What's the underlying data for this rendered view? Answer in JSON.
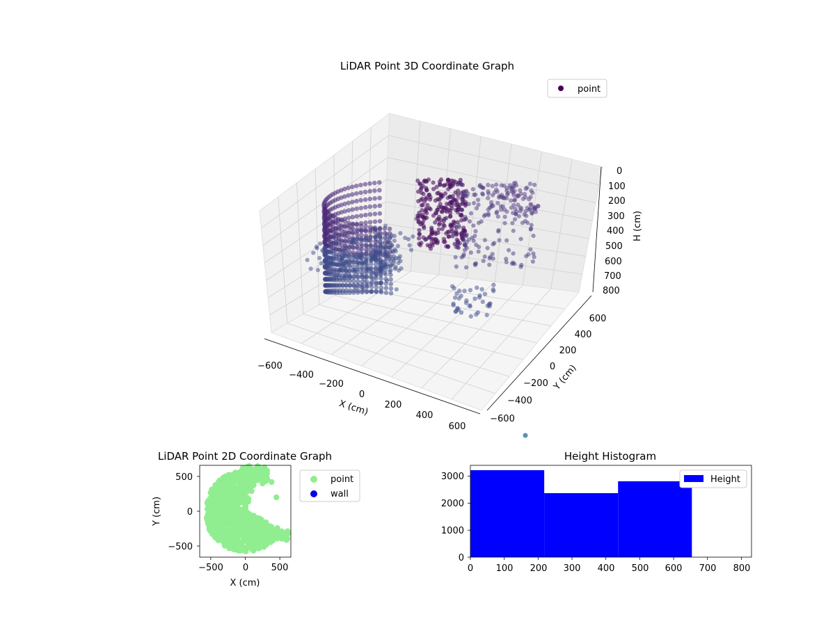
{
  "chart_data": [
    {
      "type": "scatter",
      "title": "LiDAR Point 3D Coordinate Graph",
      "xlabel": "X (cm)",
      "ylabel": "Y (cm)",
      "zlabel": "H (cm)",
      "x_ticks": [
        "−600",
        "−400",
        "−200",
        "0",
        "200",
        "400",
        "600"
      ],
      "y_ticks": [
        "−600",
        "−400",
        "−200",
        "0",
        "200",
        "400",
        "600"
      ],
      "z_ticks": [
        "0",
        "100",
        "200",
        "300",
        "400",
        "500",
        "600",
        "700",
        "800"
      ],
      "xlim": [
        -660,
        660
      ],
      "ylim": [
        -660,
        660
      ],
      "zlim": [
        0,
        830
      ],
      "z_inverted": true,
      "grid": true,
      "legend": {
        "placement": "top-right",
        "entries": [
          {
            "label": "point",
            "color": "#440154"
          }
        ]
      },
      "series": [
        {
          "name": "point",
          "values": [
            {
              "x": -600,
              "y": -300,
              "z": 500
            },
            {
              "x": -600,
              "y": 0,
              "z": 500
            },
            {
              "x": -560,
              "y": 250,
              "z": 500
            },
            {
              "x": -450,
              "y": 430,
              "z": 500
            },
            {
              "x": -300,
              "y": 560,
              "z": 500
            },
            {
              "x": -100,
              "y": 620,
              "z": 500
            },
            {
              "x": 100,
              "y": 600,
              "z": 500
            },
            {
              "x": -450,
              "y": -480,
              "z": 500
            },
            {
              "x": -250,
              "y": -580,
              "z": 500
            },
            {
              "x": 0,
              "y": -600,
              "z": 500
            },
            {
              "x": 250,
              "y": -520,
              "z": 500
            },
            {
              "x": 150,
              "y": 580,
              "z": 200
            },
            {
              "x": 260,
              "y": 520,
              "z": 250
            },
            {
              "x": 300,
              "y": 420,
              "z": 300
            },
            {
              "x": 380,
              "y": 300,
              "z": 350
            },
            {
              "x": 420,
              "y": 150,
              "z": 400
            },
            {
              "x": 450,
              "y": 50,
              "z": 450
            },
            {
              "x": 480,
              "y": -100,
              "z": 500
            },
            {
              "x": 520,
              "y": -250,
              "z": 600
            },
            {
              "x": 560,
              "y": 350,
              "z": 150
            },
            {
              "x": 600,
              "y": 200,
              "z": 200
            },
            {
              "x": 640,
              "y": 450,
              "z": 100
            },
            {
              "x": 600,
              "y": -400,
              "z": 600
            }
          ]
        }
      ]
    },
    {
      "type": "scatter",
      "title": "LiDAR Point 2D Coordinate Graph",
      "xlabel": "X (cm)",
      "ylabel": "Y (cm)",
      "x_ticks": [
        "−500",
        "0",
        "500"
      ],
      "y_ticks": [
        "−500",
        "0",
        "500"
      ],
      "xlim": [
        -660,
        660
      ],
      "ylim": [
        -660,
        660
      ],
      "legend": {
        "placement": "outside-right",
        "entries": [
          {
            "label": "point",
            "color": "#90ee90"
          },
          {
            "label": "wall",
            "color": "#0000ee"
          }
        ]
      },
      "series": [
        {
          "name": "point",
          "values": [
            {
              "x": 0,
              "y": 0
            },
            {
              "x": -200,
              "y": 300
            },
            {
              "x": -400,
              "y": -200
            },
            {
              "x": 100,
              "y": -400
            },
            {
              "x": 250,
              "y": 400
            },
            {
              "x": 300,
              "y": -300
            },
            {
              "x": 450,
              "y": 200
            },
            {
              "x": 620,
              "y": -320
            },
            {
              "x": 400,
              "y": -420
            },
            {
              "x": 380,
              "y": 420
            }
          ]
        },
        {
          "name": "wall",
          "values": []
        }
      ]
    },
    {
      "type": "bar",
      "title": "Height Histogram",
      "x_ticks": [
        "0",
        "100",
        "200",
        "300",
        "400",
        "500",
        "600",
        "700",
        "800"
      ],
      "y_ticks": [
        "0",
        "1000",
        "2000",
        "3000"
      ],
      "xlim": [
        0,
        830
      ],
      "ylim": [
        0,
        3400
      ],
      "bins": [
        [
          0,
          218
        ],
        [
          218,
          436
        ],
        [
          436,
          654
        ]
      ],
      "values": [
        3220,
        2370,
        2810
      ],
      "color": "#0000ff",
      "legend": {
        "placement": "top-right",
        "entries": [
          {
            "label": "Height",
            "color": "#0000ff"
          }
        ]
      }
    }
  ]
}
